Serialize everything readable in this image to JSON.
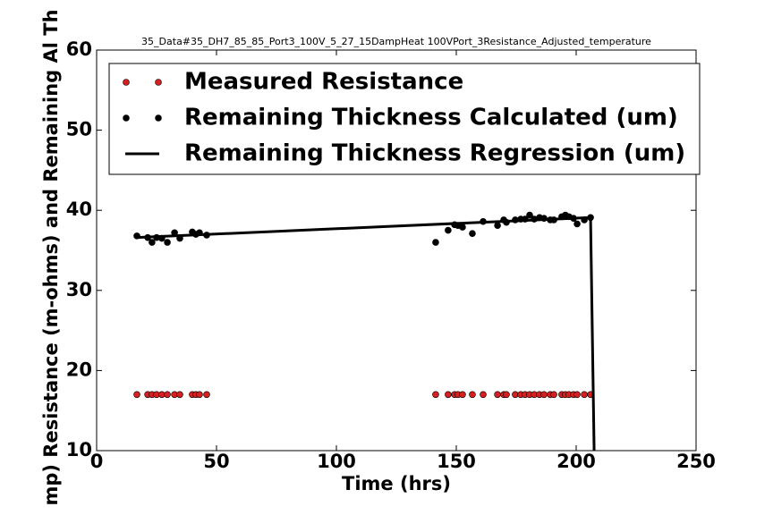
{
  "chart_data": {
    "type": "scatter",
    "title": "35_Data#35_DH7_85_85_Port3_100V_5_27_15DampHeat 100VPort_3Resistance_Adjusted_temperature",
    "xlabel": "Time (hrs)",
    "ylabel": "mp) Resistance (m-ohms) and Remaining Al Th",
    "x": [
      16.8,
      21.3,
      23.1,
      25.0,
      27.2,
      29.5,
      32.5,
      34.7,
      39.9,
      41.4,
      42.9,
      45.9,
      141.4,
      146.6,
      149.3,
      150.7,
      152.6,
      156.7,
      161.2,
      167.2,
      169.8,
      170.9,
      174.6,
      176.9,
      178.7,
      180.6,
      182.5,
      184.7,
      186.6,
      189.2,
      190.7,
      194.0,
      195.5,
      197.0,
      198.9,
      200.4,
      203.4,
      206.0
    ],
    "series": [
      {
        "name": "Measured Resistance",
        "color": "#d42020",
        "kind": "scatter",
        "values": [
          17,
          17,
          17,
          17,
          17,
          17,
          17,
          17,
          17,
          17,
          17,
          17,
          17,
          17,
          17,
          17,
          17,
          17,
          17,
          17,
          17,
          17,
          17,
          17,
          17,
          17,
          17,
          17,
          17,
          17,
          17,
          17,
          17,
          17,
          17,
          17,
          17,
          17
        ]
      },
      {
        "name": "Remaining Thickness Calculated (um)",
        "color": "#000000",
        "kind": "scatter",
        "values": [
          36.8,
          36.6,
          36.0,
          36.6,
          36.5,
          36.0,
          37.2,
          36.5,
          37.3,
          37.0,
          37.2,
          36.9,
          36.0,
          37.5,
          38.2,
          38.1,
          37.9,
          37.1,
          38.6,
          38.1,
          38.8,
          38.5,
          38.8,
          38.9,
          38.9,
          39.4,
          38.9,
          39.1,
          39.0,
          38.8,
          38.8,
          39.2,
          39.4,
          39.2,
          39.0,
          38.3,
          38.8,
          39.1
        ]
      },
      {
        "name": "Remaining Thickness Regression (um)",
        "color": "#000000",
        "kind": "line",
        "x": [
          16.8,
          206.0,
          208.0
        ],
        "values": [
          36.6,
          39.1,
          0
        ]
      }
    ],
    "xlim": [
      0,
      250
    ],
    "xticks": [
      0,
      50,
      100,
      150,
      200,
      250
    ],
    "ylim": [
      10,
      60
    ],
    "yticks": [
      10,
      20,
      30,
      40,
      50,
      60
    ],
    "legend": "upper right"
  }
}
